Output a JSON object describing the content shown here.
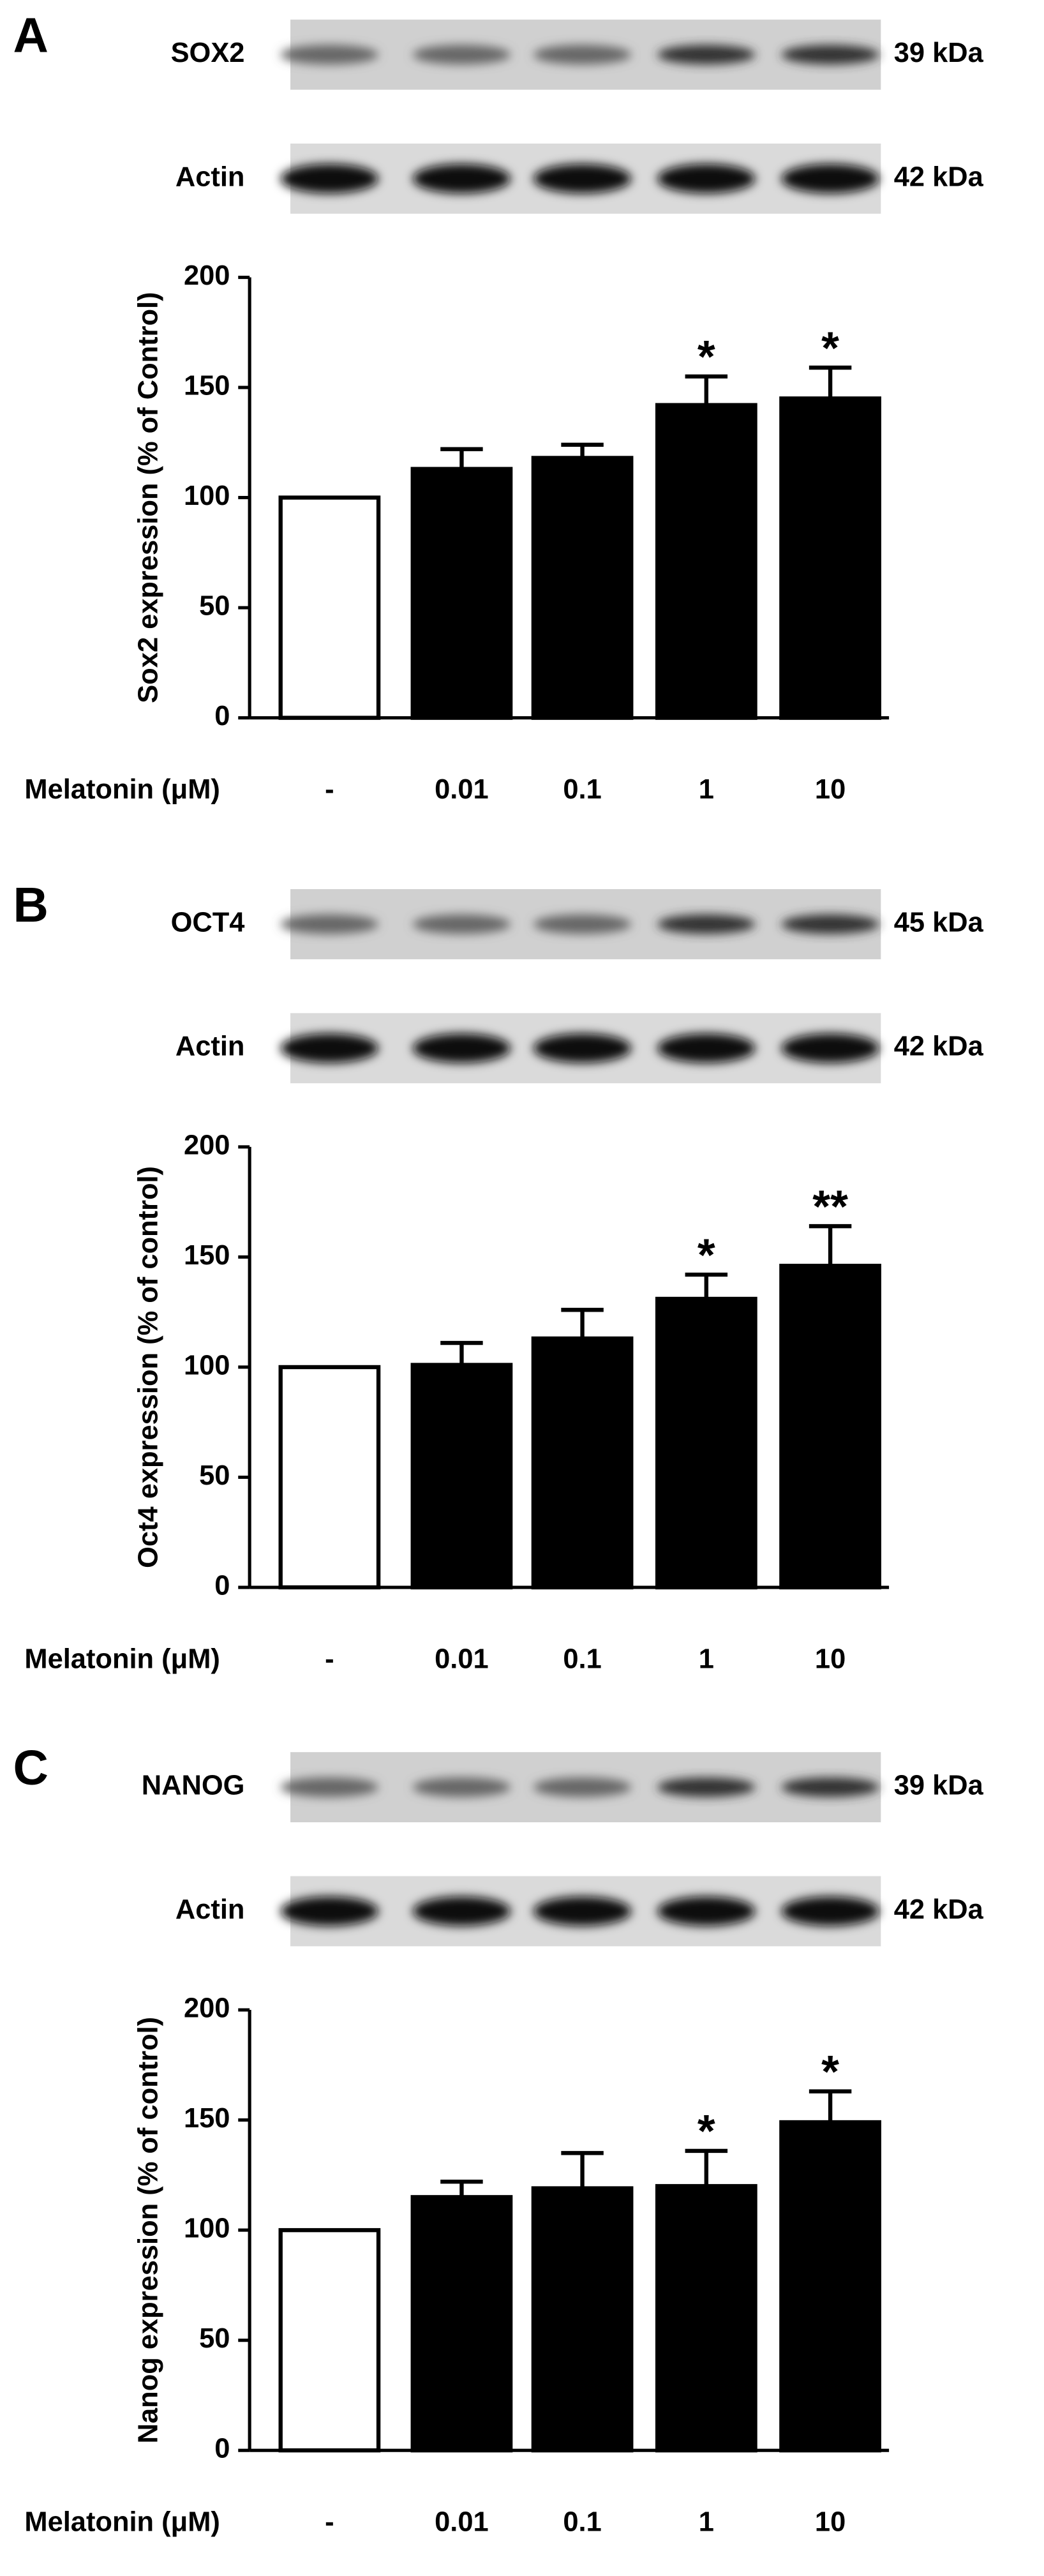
{
  "chart_data": [
    {
      "type": "bar",
      "panel_label": "A",
      "blots": [
        {
          "label": "SOX2",
          "size": "39 kDa"
        },
        {
          "label": "Actin",
          "size": "42 kDa"
        }
      ],
      "ylabel": "Sox2 expression (% of Control)",
      "xlabel": "Melatonin (μM)",
      "categories": [
        "-",
        "0.01",
        "0.1",
        "1",
        "10"
      ],
      "values": [
        100,
        113,
        118,
        142,
        145
      ],
      "errors": [
        0,
        9,
        6,
        13,
        14
      ],
      "significance": [
        null,
        null,
        null,
        "*",
        "*"
      ],
      "colors": [
        "#ffffff",
        "#000000",
        "#000000",
        "#000000",
        "#000000"
      ],
      "ylim": [
        0,
        200
      ],
      "yticks": [
        0,
        50,
        100,
        150,
        200
      ]
    },
    {
      "type": "bar",
      "panel_label": "B",
      "blots": [
        {
          "label": "OCT4",
          "size": "45 kDa"
        },
        {
          "label": "Actin",
          "size": "42 kDa"
        }
      ],
      "ylabel": "Oct4 expression (% of control)",
      "xlabel": "Melatonin (μM)",
      "categories": [
        "-",
        "0.01",
        "0.1",
        "1",
        "10"
      ],
      "values": [
        100,
        101,
        113,
        131,
        146
      ],
      "errors": [
        0,
        10,
        13,
        11,
        18
      ],
      "significance": [
        null,
        null,
        null,
        "*",
        "**"
      ],
      "colors": [
        "#ffffff",
        "#000000",
        "#000000",
        "#000000",
        "#000000"
      ],
      "ylim": [
        0,
        200
      ],
      "yticks": [
        0,
        50,
        100,
        150,
        200
      ]
    },
    {
      "type": "bar",
      "panel_label": "C",
      "blots": [
        {
          "label": "NANOG",
          "size": "39 kDa"
        },
        {
          "label": "Actin",
          "size": "42 kDa"
        }
      ],
      "ylabel": "Nanog expression (% of control)",
      "xlabel": "Melatonin (μM)",
      "categories": [
        "-",
        "0.01",
        "0.1",
        "1",
        "10"
      ],
      "values": [
        100,
        115,
        119,
        120,
        149
      ],
      "errors": [
        0,
        7,
        16,
        16,
        14
      ],
      "significance": [
        null,
        null,
        null,
        "*",
        "*"
      ],
      "colors": [
        "#ffffff",
        "#000000",
        "#000000",
        "#000000",
        "#000000"
      ],
      "ylim": [
        0,
        200
      ],
      "yticks": [
        0,
        50,
        100,
        150,
        200
      ]
    }
  ]
}
